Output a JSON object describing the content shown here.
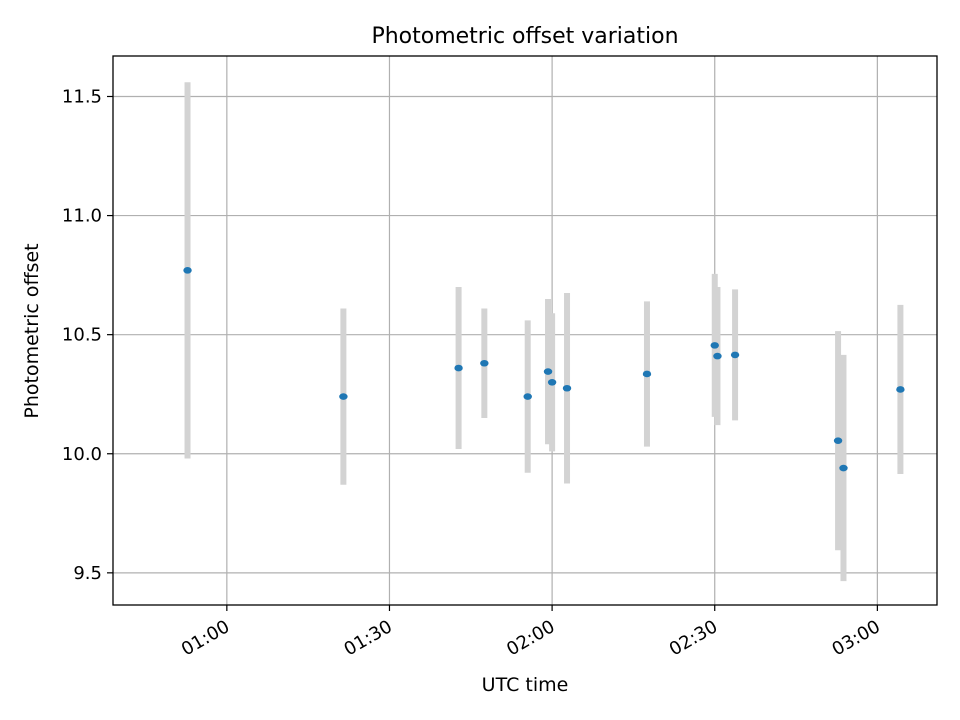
{
  "chart_data": {
    "type": "scatter",
    "title": "Photometric offset variation",
    "xlabel": "UTC time",
    "ylabel": "Photometric offset",
    "x_axis": {
      "kind": "time",
      "range": [
        "00:39",
        "03:11"
      ],
      "ticks": [
        "01:00",
        "01:30",
        "02:00",
        "02:30",
        "03:00"
      ]
    },
    "y_axis": {
      "range": [
        9.365,
        11.67
      ],
      "ticks": [
        9.5,
        10.0,
        10.5,
        11.0,
        11.5
      ],
      "tick_labels": [
        "9.5",
        "10.0",
        "10.5",
        "11.0",
        "11.5"
      ]
    },
    "grid": true,
    "series": [
      {
        "marker_color": "#1f77b4",
        "errorbar_color": "#d3d3d3",
        "points": [
          {
            "x": "00:52:45",
            "y": 10.77,
            "err": 0.79
          },
          {
            "x": "01:21:30",
            "y": 10.24,
            "err": 0.37
          },
          {
            "x": "01:42:45",
            "y": 10.36,
            "err": 0.34
          },
          {
            "x": "01:47:30",
            "y": 10.38,
            "err": 0.23
          },
          {
            "x": "01:55:30",
            "y": 10.24,
            "err": 0.32
          },
          {
            "x": "01:59:15",
            "y": 10.345,
            "err": 0.305
          },
          {
            "x": "02:00:00",
            "y": 10.3,
            "err": 0.29
          },
          {
            "x": "02:02:45",
            "y": 10.275,
            "err": 0.4
          },
          {
            "x": "02:17:30",
            "y": 10.335,
            "err": 0.305
          },
          {
            "x": "02:30:00",
            "y": 10.455,
            "err": 0.3
          },
          {
            "x": "02:30:30",
            "y": 10.41,
            "err": 0.29
          },
          {
            "x": "02:33:45",
            "y": 10.415,
            "err": 0.275
          },
          {
            "x": "02:52:45",
            "y": 10.055,
            "err": 0.46
          },
          {
            "x": "02:53:45",
            "y": 9.94,
            "err": 0.475
          },
          {
            "x": "03:04:15",
            "y": 10.27,
            "err": 0.355
          }
        ]
      }
    ]
  }
}
